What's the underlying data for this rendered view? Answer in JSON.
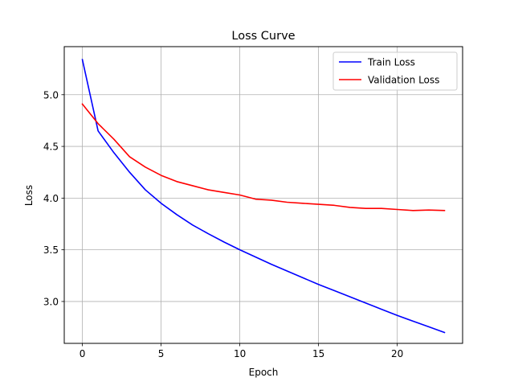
{
  "chart_data": {
    "type": "line",
    "title": "Loss Curve",
    "xlabel": "Epoch",
    "ylabel": "Loss",
    "xlim": [
      -1.15,
      24.15
    ],
    "ylim": [
      2.595,
      5.465
    ],
    "x_ticks": [
      0,
      5,
      10,
      15,
      20
    ],
    "x_tick_labels": [
      "0",
      "5",
      "10",
      "15",
      "20"
    ],
    "y_ticks": [
      3.0,
      3.5,
      4.0,
      4.5,
      5.0
    ],
    "y_tick_labels": [
      "3.0",
      "3.5",
      "4.0",
      "4.5",
      "5.0"
    ],
    "grid": true,
    "legend_position": "upper right",
    "x": [
      0,
      1,
      2,
      3,
      4,
      5,
      6,
      7,
      8,
      9,
      10,
      11,
      12,
      13,
      14,
      15,
      16,
      17,
      18,
      19,
      20,
      21,
      22,
      23
    ],
    "series": [
      {
        "name": "Train Loss",
        "color": "#0000ff",
        "values": [
          5.34,
          4.65,
          4.44,
          4.25,
          4.08,
          3.95,
          3.84,
          3.74,
          3.655,
          3.575,
          3.5,
          3.43,
          3.36,
          3.295,
          3.23,
          3.165,
          3.105,
          3.045,
          2.985,
          2.925,
          2.865,
          2.81,
          2.755,
          2.7
        ]
      },
      {
        "name": "Validation Loss",
        "color": "#ff0000",
        "values": [
          4.91,
          4.72,
          4.57,
          4.4,
          4.3,
          4.22,
          4.16,
          4.12,
          4.08,
          4.055,
          4.03,
          3.99,
          3.98,
          3.96,
          3.95,
          3.94,
          3.93,
          3.91,
          3.9,
          3.9,
          3.89,
          3.88,
          3.885,
          3.88
        ]
      }
    ]
  }
}
